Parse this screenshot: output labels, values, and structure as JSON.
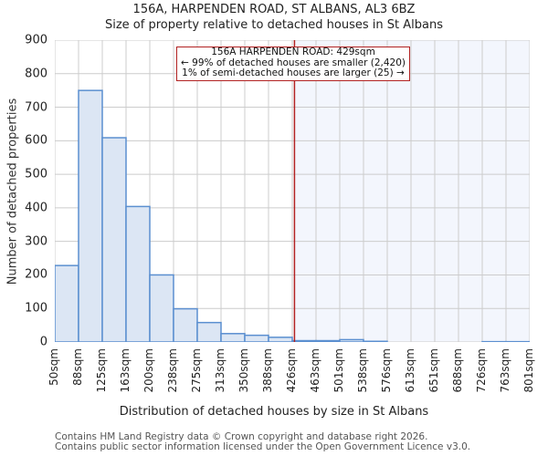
{
  "chart_data": {
    "type": "bar",
    "title": "156A, HARPENDEN ROAD, ST ALBANS, AL3 6BZ",
    "subtitle": "Size of property relative to detached houses in St Albans",
    "xlabel": "Distribution of detached houses by size in St Albans",
    "ylabel": "Number of detached properties",
    "ylim": [
      0,
      900
    ],
    "yticks": [
      0,
      100,
      200,
      300,
      400,
      500,
      600,
      700,
      800,
      900
    ],
    "grid": true,
    "categories": [
      "50sqm",
      "88sqm",
      "125sqm",
      "163sqm",
      "200sqm",
      "238sqm",
      "275sqm",
      "313sqm",
      "350sqm",
      "388sqm",
      "426sqm",
      "463sqm",
      "501sqm",
      "538sqm",
      "576sqm",
      "613sqm",
      "651sqm",
      "688sqm",
      "726sqm",
      "763sqm",
      "801sqm"
    ],
    "bin_edges": [
      50,
      88,
      125,
      163,
      200,
      238,
      275,
      313,
      350,
      388,
      426,
      463,
      501,
      538,
      576,
      613,
      651,
      688,
      726,
      763,
      801
    ],
    "values": [
      228,
      750,
      609,
      404,
      200,
      99,
      58,
      25,
      20,
      14,
      4,
      4,
      7,
      2,
      0,
      0,
      0,
      0,
      1,
      1
    ],
    "marker": {
      "value": 429,
      "label": "156A HARPENDEN ROAD: 429sqm",
      "color": "#b22222"
    },
    "annotation": [
      "156A HARPENDEN ROAD: 429sqm",
      "← 99% of detached houses are smaller (2,420)",
      "1% of semi-detached houses are larger (25) →"
    ],
    "colors": {
      "bar_fill": "#dce6f4",
      "bar_edge": "#5b8fd0",
      "highlight_region": "#f3f6fd",
      "grid": "#cccccc",
      "marker": "#b22222"
    }
  },
  "footer": {
    "line1": "Contains HM Land Registry data © Crown copyright and database right 2026.",
    "line2": "Contains public sector information licensed under the Open Government Licence v3.0."
  }
}
